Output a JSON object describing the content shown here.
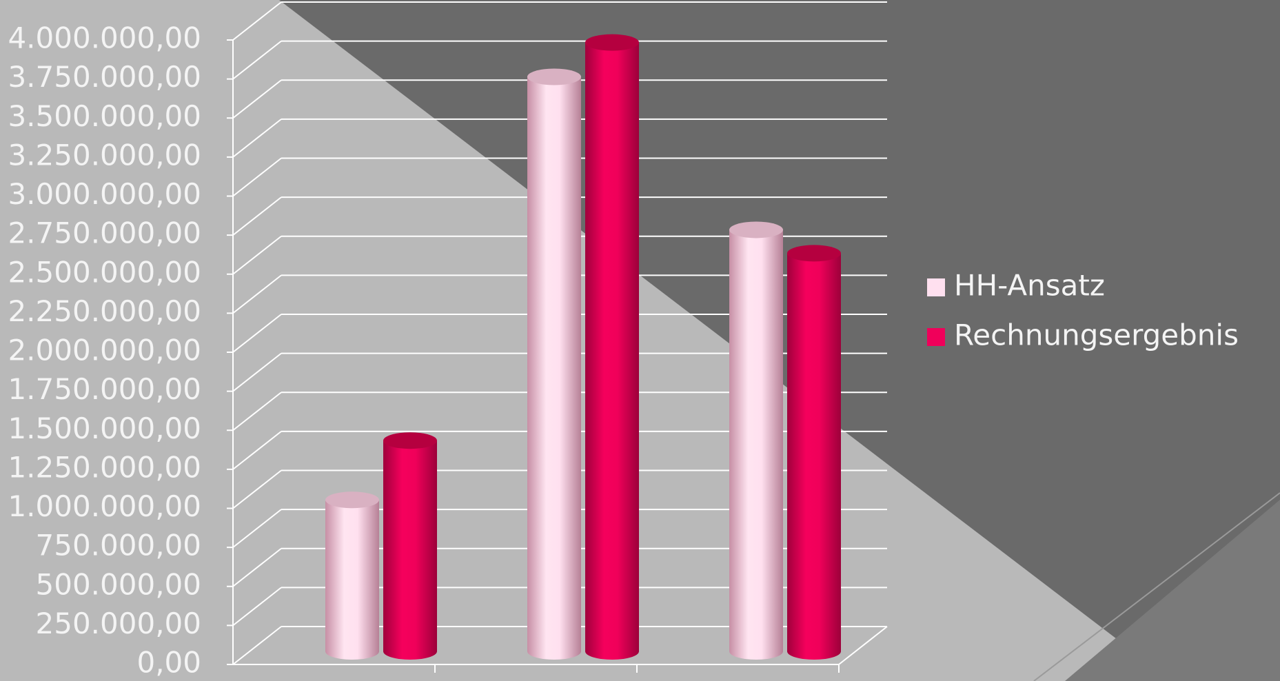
{
  "colors": {
    "background_light": "#b9b9b9",
    "background_dark": "#666666",
    "gridline": "#ffffff",
    "text": "#f4f4f4",
    "hh_ansatz": "#ffe0ef",
    "rechnungsergebnis": "#f0005a"
  },
  "chart_data": {
    "type": "bar",
    "style": "3d-cylinder",
    "categories": [
      "",
      "",
      ""
    ],
    "series": [
      {
        "name": "HH-Ansatz",
        "color": "#ffe0ef",
        "values": [
          970000,
          3680000,
          2700000
        ]
      },
      {
        "name": "Rechnungsergebnis",
        "color": "#f0005a",
        "values": [
          1350000,
          3900000,
          2550000
        ]
      }
    ],
    "ylim": [
      0,
      4000000
    ],
    "y_ticks": [
      "0,00",
      "250.000,00",
      "500.000,00",
      "750.000,00",
      "1.000.000,00",
      "1.250.000,00",
      "1.500.000,00",
      "1.750.000,00",
      "2.000.000,00",
      "2.250.000,00",
      "2.500.000,00",
      "2.750.000,00",
      "3.000.000,00",
      "3.250.000,00",
      "3.500.000,00",
      "3.750.000,00",
      "4.000.000,00"
    ],
    "grid": true,
    "legend": "right",
    "title": "",
    "xlabel": "",
    "ylabel": ""
  }
}
